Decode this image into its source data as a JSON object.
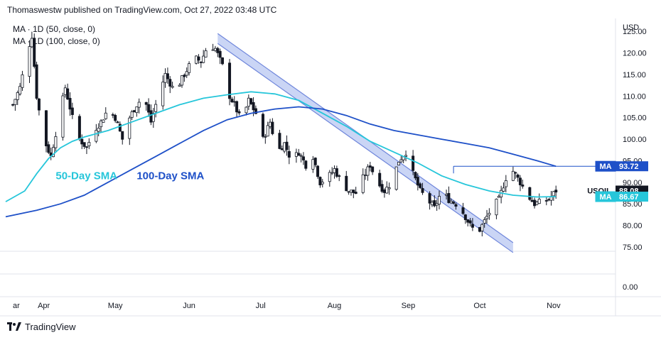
{
  "header": {
    "text": "Thomaswestw published on TradingView.com, Oct 27, 2022 03:48 UTC"
  },
  "legend": [
    {
      "text": "MA · 1D (50, close, 0)"
    },
    {
      "text": "MA · 1D (100, close, 0)"
    }
  ],
  "brand": {
    "text": "TradingView"
  },
  "colors": {
    "ma50": "#26c6da",
    "ma100": "#1e50c8",
    "candle": "#131722",
    "channel_fill": "#b8c7f2",
    "channel_edge": "#6f86db",
    "tag_ma": "#1e50c8",
    "tag_price": "#131722",
    "tag_ma50": "#26c6da"
  },
  "chart_data": {
    "type": "line",
    "title": "",
    "symbol": "USOIL",
    "currency_label": "USD",
    "ylim": [
      74,
      128
    ],
    "y_ticks": [
      "125.00",
      "120.00",
      "115.00",
      "110.00",
      "105.00",
      "100.00",
      "95.00",
      "90.00",
      "85.00",
      "80.00",
      "75.00"
    ],
    "y_tick_values": [
      125,
      120,
      115,
      110,
      105,
      100,
      95,
      90,
      85,
      80,
      75
    ],
    "lower_pane_ticks": [
      "0.00"
    ],
    "x_ticks": [
      "ar",
      "Apr",
      "May",
      "Jun",
      "Jul",
      "Aug",
      "Sep",
      "Oct",
      "Nov"
    ],
    "x_tick_days": [
      0,
      13,
      43,
      74,
      104,
      135,
      166,
      196,
      227
    ],
    "x_range_days": [
      -3,
      253
    ],
    "x_unit": "days from Mar 1, 2022",
    "annotations": [
      {
        "text": "50-Day SMA",
        "color": "#26c6da",
        "x": 18,
        "y": 91.5
      },
      {
        "text": "100-Day SMA",
        "color": "#1e50c8",
        "x": 52,
        "y": 91.5
      }
    ],
    "price_tags": [
      {
        "label": "MA",
        "value": "93.72",
        "y": 93.72,
        "color": "#1e50c8"
      },
      {
        "label": "USOIL",
        "value": "88.08",
        "y": 88.08,
        "color": "#131722"
      },
      {
        "label": "MA",
        "value": "86.67",
        "y": 86.67,
        "color": "#26c6da"
      }
    ],
    "channel": [
      {
        "x": 86,
        "y": 124.5
      },
      {
        "x": 210,
        "y": 76
      }
    ],
    "channel_width": 2.3,
    "recent_high_line": {
      "y": 93.72,
      "x_start": 185
    },
    "price": [
      {
        "x": 0,
        "y": 108
      },
      {
        "x": 3,
        "y": 112
      },
      {
        "x": 6,
        "y": 120
      },
      {
        "x": 8,
        "y": 124
      },
      {
        "x": 10,
        "y": 110
      },
      {
        "x": 13,
        "y": 100
      },
      {
        "x": 16,
        "y": 96
      },
      {
        "x": 19,
        "y": 104
      },
      {
        "x": 22,
        "y": 112
      },
      {
        "x": 25,
        "y": 105
      },
      {
        "x": 28,
        "y": 100
      },
      {
        "x": 31,
        "y": 98
      },
      {
        "x": 34,
        "y": 102
      },
      {
        "x": 37,
        "y": 104
      },
      {
        "x": 40,
        "y": 107
      },
      {
        "x": 43,
        "y": 105
      },
      {
        "x": 46,
        "y": 100
      },
      {
        "x": 49,
        "y": 105
      },
      {
        "x": 52,
        "y": 108
      },
      {
        "x": 55,
        "y": 110
      },
      {
        "x": 58,
        "y": 104
      },
      {
        "x": 61,
        "y": 110
      },
      {
        "x": 64,
        "y": 115
      },
      {
        "x": 67,
        "y": 112
      },
      {
        "x": 70,
        "y": 113
      },
      {
        "x": 73,
        "y": 116
      },
      {
        "x": 76,
        "y": 119
      },
      {
        "x": 79,
        "y": 118
      },
      {
        "x": 82,
        "y": 122
      },
      {
        "x": 85,
        "y": 121
      },
      {
        "x": 88,
        "y": 117
      },
      {
        "x": 90,
        "y": 111
      },
      {
        "x": 93,
        "y": 108
      },
      {
        "x": 96,
        "y": 104
      },
      {
        "x": 99,
        "y": 109
      },
      {
        "x": 102,
        "y": 106
      },
      {
        "x": 105,
        "y": 100
      },
      {
        "x": 108,
        "y": 104
      },
      {
        "x": 111,
        "y": 97
      },
      {
        "x": 114,
        "y": 99
      },
      {
        "x": 117,
        "y": 95
      },
      {
        "x": 120,
        "y": 97
      },
      {
        "x": 123,
        "y": 94
      },
      {
        "x": 126,
        "y": 96
      },
      {
        "x": 129,
        "y": 90
      },
      {
        "x": 132,
        "y": 91
      },
      {
        "x": 135,
        "y": 93
      },
      {
        "x": 138,
        "y": 90
      },
      {
        "x": 141,
        "y": 88
      },
      {
        "x": 144,
        "y": 87.5
      },
      {
        "x": 147,
        "y": 91
      },
      {
        "x": 150,
        "y": 94
      },
      {
        "x": 153,
        "y": 90
      },
      {
        "x": 156,
        "y": 88
      },
      {
        "x": 159,
        "y": 90
      },
      {
        "x": 162,
        "y": 95
      },
      {
        "x": 165,
        "y": 97
      },
      {
        "x": 168,
        "y": 92
      },
      {
        "x": 171,
        "y": 88
      },
      {
        "x": 174,
        "y": 86
      },
      {
        "x": 177,
        "y": 84
      },
      {
        "x": 180,
        "y": 88
      },
      {
        "x": 183,
        "y": 86
      },
      {
        "x": 186,
        "y": 85
      },
      {
        "x": 189,
        "y": 83
      },
      {
        "x": 192,
        "y": 80
      },
      {
        "x": 195,
        "y": 78
      },
      {
        "x": 198,
        "y": 81
      },
      {
        "x": 201,
        "y": 84
      },
      {
        "x": 204,
        "y": 86
      },
      {
        "x": 207,
        "y": 91
      },
      {
        "x": 210,
        "y": 92.6
      },
      {
        "x": 213,
        "y": 90
      },
      {
        "x": 216,
        "y": 87
      },
      {
        "x": 219,
        "y": 85
      },
      {
        "x": 222,
        "y": 85.5
      },
      {
        "x": 225,
        "y": 86
      },
      {
        "x": 228,
        "y": 88.08
      }
    ],
    "series": [
      {
        "name": "MA",
        "color": "#26c6da",
        "values": [
          {
            "x": -3,
            "y": 85.5
          },
          {
            "x": 5,
            "y": 88
          },
          {
            "x": 10,
            "y": 92
          },
          {
            "x": 15,
            "y": 95.5
          },
          {
            "x": 20,
            "y": 98
          },
          {
            "x": 25,
            "y": 99.5
          },
          {
            "x": 30,
            "y": 100.5
          },
          {
            "x": 40,
            "y": 102
          },
          {
            "x": 50,
            "y": 104
          },
          {
            "x": 60,
            "y": 106
          },
          {
            "x": 70,
            "y": 108
          },
          {
            "x": 80,
            "y": 109.5
          },
          {
            "x": 90,
            "y": 110.3
          },
          {
            "x": 100,
            "y": 111
          },
          {
            "x": 110,
            "y": 110.5
          },
          {
            "x": 120,
            "y": 109
          },
          {
            "x": 130,
            "y": 106
          },
          {
            "x": 140,
            "y": 103
          },
          {
            "x": 150,
            "y": 99.5
          },
          {
            "x": 160,
            "y": 97
          },
          {
            "x": 170,
            "y": 94.5
          },
          {
            "x": 180,
            "y": 91.5
          },
          {
            "x": 190,
            "y": 89.5
          },
          {
            "x": 200,
            "y": 88
          },
          {
            "x": 210,
            "y": 87
          },
          {
            "x": 220,
            "y": 86.6
          },
          {
            "x": 228,
            "y": 86.67
          }
        ]
      },
      {
        "name": "MA",
        "color": "#1e50c8",
        "values": [
          {
            "x": -3,
            "y": 82
          },
          {
            "x": 10,
            "y": 83.5
          },
          {
            "x": 20,
            "y": 85
          },
          {
            "x": 30,
            "y": 87
          },
          {
            "x": 40,
            "y": 90
          },
          {
            "x": 50,
            "y": 93
          },
          {
            "x": 60,
            "y": 96
          },
          {
            "x": 70,
            "y": 99
          },
          {
            "x": 80,
            "y": 102
          },
          {
            "x": 90,
            "y": 104.5
          },
          {
            "x": 100,
            "y": 106
          },
          {
            "x": 110,
            "y": 107
          },
          {
            "x": 120,
            "y": 107.5
          },
          {
            "x": 130,
            "y": 107
          },
          {
            "x": 140,
            "y": 105.5
          },
          {
            "x": 150,
            "y": 103.5
          },
          {
            "x": 160,
            "y": 102
          },
          {
            "x": 170,
            "y": 101
          },
          {
            "x": 180,
            "y": 100
          },
          {
            "x": 190,
            "y": 99
          },
          {
            "x": 200,
            "y": 98
          },
          {
            "x": 210,
            "y": 96.5
          },
          {
            "x": 220,
            "y": 95
          },
          {
            "x": 228,
            "y": 93.72
          }
        ]
      }
    ]
  }
}
